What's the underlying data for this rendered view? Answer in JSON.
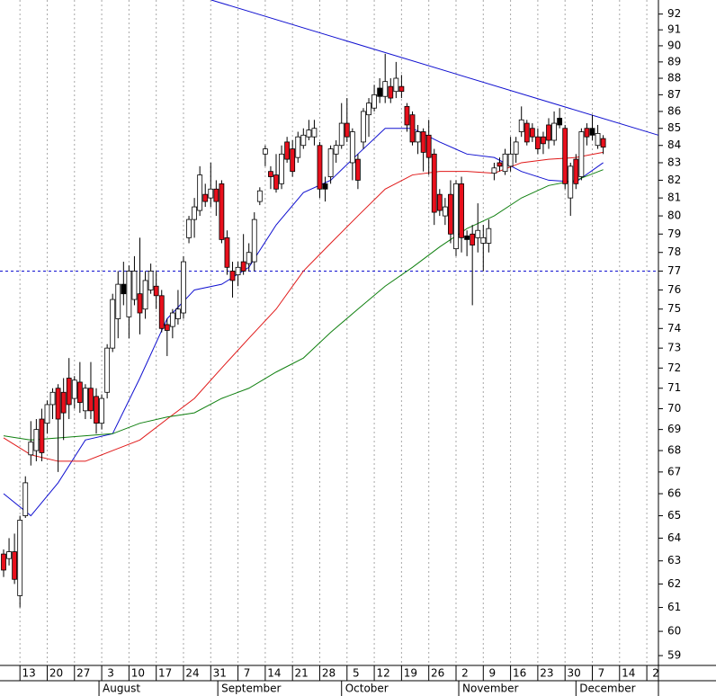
{
  "chart_data": {
    "type": "candlestick",
    "log_scale": true,
    "xlim": [
      -0.66,
      120.13
    ],
    "ylim": [
      58.6,
      92.9
    ],
    "yticks": [
      59,
      60,
      61,
      62,
      63,
      64,
      65,
      66,
      67,
      68,
      69,
      70,
      71,
      72,
      73,
      74,
      75,
      76,
      77,
      78,
      79,
      80,
      81,
      82,
      83,
      84,
      85,
      86,
      87,
      88,
      89,
      90,
      91,
      92
    ],
    "xticks": [
      {
        "value": 3,
        "label": "13"
      },
      {
        "value": 8,
        "label": "20"
      },
      {
        "value": 13,
        "label": "27"
      },
      {
        "value": 18,
        "label": "3"
      },
      {
        "value": 23,
        "label": "10"
      },
      {
        "value": 28,
        "label": "17"
      },
      {
        "value": 33,
        "label": "24"
      },
      {
        "value": 38,
        "label": "31"
      },
      {
        "value": 43,
        "label": "7"
      },
      {
        "value": 48,
        "label": "14"
      },
      {
        "value": 53,
        "label": "21"
      },
      {
        "value": 58,
        "label": "28"
      },
      {
        "value": 63,
        "label": "5"
      },
      {
        "value": 68,
        "label": "12"
      },
      {
        "value": 73,
        "label": "19"
      },
      {
        "value": 78,
        "label": "26"
      },
      {
        "value": 83,
        "label": "2"
      },
      {
        "value": 88,
        "label": "9"
      },
      {
        "value": 93,
        "label": "16"
      },
      {
        "value": 98,
        "label": "23"
      },
      {
        "value": 103,
        "label": "30"
      },
      {
        "value": 108,
        "label": "7"
      },
      {
        "value": 113,
        "label": "14"
      },
      {
        "value": 118,
        "label": "2"
      }
    ],
    "months": [
      {
        "value": 17.5,
        "label": "August"
      },
      {
        "value": 39.3,
        "label": "September"
      },
      {
        "value": 62,
        "label": "October"
      },
      {
        "value": 83.5,
        "label": "November"
      },
      {
        "value": 105,
        "label": "December"
      }
    ],
    "grid": true,
    "open": [
      63.3,
      63.1,
      63.4,
      61.5,
      65,
      67.8,
      68,
      69.5,
      69.3,
      70.2,
      71,
      70.8,
      71.5,
      70.5,
      71.3,
      69.9,
      71,
      70.6,
      69.3,
      70.8,
      73,
      74.5,
      76.3,
      74.6,
      75.5,
      75.8,
      75,
      76,
      76.2,
      75.7,
      74.2,
      74.1,
      74.5,
      74.8,
      78.8,
      79.8,
      80.3,
      81.2,
      81,
      81.5,
      81.8,
      78.8,
      77,
      76.8,
      77.5,
      77.4,
      77.5,
      80.8,
      83.5,
      82.5,
      82.3,
      81.8,
      84.2,
      83.8,
      83.3,
      84,
      84.5,
      84.5,
      84,
      81.8,
      82.2,
      83.5,
      84,
      85.3,
      83,
      83.2,
      84.2,
      85.8,
      86.2,
      87.4,
      86.9,
      87.5,
      87.2,
      87.5,
      86.3,
      85.8,
      84.2,
      84.8,
      84.6,
      83.5,
      81.2,
      80,
      81.2,
      78.2,
      81.8,
      78.9,
      79,
      78.8,
      78.5,
      78.5,
      82.4,
      83,
      82.5,
      82.8,
      83.5,
      84.8,
      85.3,
      85,
      84.5,
      84.5,
      85.2,
      84.3,
      85.6,
      85,
      81,
      83.2,
      82.2,
      85,
      85,
      84,
      84.4
    ],
    "high": [
      63.5,
      64,
      64.2,
      65,
      66.8,
      69.4,
      69.5,
      70,
      70.4,
      71,
      71.2,
      71.5,
      72.5,
      71.6,
      72.3,
      71.2,
      72.3,
      71,
      70.7,
      73.2,
      75.8,
      77,
      77.5,
      77.3,
      77.8,
      78.8,
      77,
      77.4,
      77,
      76,
      74.5,
      75,
      76,
      77.8,
      80,
      81,
      82.8,
      81.8,
      83,
      82,
      82,
      79.2,
      77.5,
      77.5,
      79,
      78.5,
      80.2,
      81.6,
      84,
      82.8,
      83.5,
      84,
      84.5,
      84.3,
      84.8,
      85,
      85.5,
      85.5,
      84.2,
      82.2,
      84,
      84.3,
      86.5,
      86.8,
      85,
      83.5,
      86.2,
      86.8,
      87.6,
      88,
      89.5,
      88,
      89,
      88.2,
      86.5,
      86,
      85.2,
      85,
      85.5,
      83.8,
      81.5,
      81,
      82,
      82,
      82.2,
      79.2,
      79.5,
      80.7,
      79.5,
      79.8,
      83,
      83.3,
      83.8,
      84.5,
      84.5,
      86.3,
      85.5,
      85.3,
      85,
      84.8,
      85.6,
      86,
      86.2,
      85.2,
      83,
      83.5,
      85,
      85.3,
      85.8,
      85.2,
      84.6
    ],
    "low": [
      62.3,
      62.8,
      62,
      61,
      64.9,
      67.3,
      67.5,
      67.5,
      68.8,
      69.5,
      67,
      68.5,
      69.5,
      70,
      69.8,
      69.5,
      69.5,
      68.8,
      69,
      70.5,
      72.8,
      73.5,
      75.2,
      73.5,
      75.2,
      73.7,
      74.5,
      75.8,
      75,
      73.8,
      72.6,
      73.5,
      74.2,
      74.5,
      78.5,
      78.8,
      80,
      80.5,
      80.5,
      80,
      78.5,
      76.8,
      75.6,
      76.2,
      76.8,
      77,
      77,
      80.6,
      82.8,
      81.5,
      81.3,
      81.5,
      83,
      82.2,
      83,
      83.8,
      84.3,
      84,
      81,
      80.8,
      81.8,
      83,
      83.8,
      84.2,
      82,
      81.5,
      83.8,
      84.5,
      86,
      86.5,
      86.5,
      86.5,
      86.8,
      86.8,
      84.8,
      84,
      83.5,
      82.5,
      82.3,
      79.5,
      80,
      79.5,
      78.5,
      77.8,
      78,
      77.8,
      75.2,
      78,
      77,
      78,
      82,
      82.5,
      82.3,
      82.5,
      83,
      84.5,
      84,
      84.2,
      83.5,
      83.5,
      83.8,
      84,
      85,
      81.5,
      80,
      81.5,
      82,
      84,
      84.3,
      83.8,
      83.5
    ],
    "close": [
      62.6,
      63.4,
      62.2,
      64.8,
      66.5,
      68.4,
      69,
      67.9,
      70.2,
      70.8,
      69.5,
      69.8,
      70.2,
      71.4,
      70.3,
      71,
      69.9,
      69.3,
      70.5,
      73,
      75.5,
      76.3,
      75.8,
      77,
      77,
      74.8,
      76.5,
      77,
      75.7,
      74,
      73.9,
      74.8,
      75,
      77.5,
      79.8,
      80.5,
      82.3,
      80.8,
      81.5,
      80.8,
      78.7,
      77.2,
      76.5,
      77.2,
      77,
      78,
      79.8,
      81.4,
      83.8,
      82.2,
      81.5,
      83.5,
      83.2,
      82.5,
      84.5,
      84.6,
      84.9,
      85,
      81.5,
      81.5,
      83.8,
      84,
      85.3,
      84.5,
      84.8,
      82,
      86,
      86.5,
      87,
      86.9,
      87.8,
      86.8,
      88,
      87.2,
      85.2,
      84.2,
      84.8,
      83.6,
      83.3,
      80.2,
      80.3,
      80.5,
      79,
      81.8,
      78.8,
      78.7,
      78.4,
      79.2,
      78.8,
      79.3,
      82.7,
      82.8,
      83.5,
      83.5,
      84.2,
      85.5,
      84.2,
      84.5,
      83.8,
      84.1,
      84.3,
      85.3,
      85.2,
      81.8,
      82.8,
      81.8,
      84.8,
      84.5,
      84.6,
      84.7,
      83.9
    ],
    "colors": [
      "#e8101c",
      "#ffffff",
      "#e8101c",
      "#ffffff",
      "#ffffff",
      "#ffffff",
      "#ffffff",
      "#e8101c",
      "#ffffff",
      "#ffffff",
      "#e8101c",
      "#e8101c",
      "#e8101c",
      "#ffffff",
      "#e8101c",
      "#ffffff",
      "#e8101c",
      "#e8101c",
      "#ffffff",
      "#ffffff",
      "#ffffff",
      "#ffffff",
      "#000000",
      "#ffffff",
      "#ffffff",
      "#e8101c",
      "#ffffff",
      "#ffffff",
      "#e8101c",
      "#e8101c",
      "#e8101c",
      "#ffffff",
      "#ffffff",
      "#ffffff",
      "#ffffff",
      "#ffffff",
      "#ffffff",
      "#e8101c",
      "#ffffff",
      "#e8101c",
      "#e8101c",
      "#e8101c",
      "#e8101c",
      "#ffffff",
      "#e8101c",
      "#ffffff",
      "#ffffff",
      "#ffffff",
      "#ffffff",
      "#e8101c",
      "#e8101c",
      "#ffffff",
      "#e8101c",
      "#e8101c",
      "#ffffff",
      "#ffffff",
      "#ffffff",
      "#ffffff",
      "#e8101c",
      "#000000",
      "#ffffff",
      "#ffffff",
      "#ffffff",
      "#e8101c",
      "#ffffff",
      "#e8101c",
      "#ffffff",
      "#ffffff",
      "#ffffff",
      "#000000",
      "#ffffff",
      "#e8101c",
      "#ffffff",
      "#e8101c",
      "#e8101c",
      "#e8101c",
      "#ffffff",
      "#e8101c",
      "#e8101c",
      "#e8101c",
      "#e8101c",
      "#ffffff",
      "#e8101c",
      "#ffffff",
      "#e8101c",
      "#000000",
      "#e8101c",
      "#ffffff",
      "#ffffff",
      "#ffffff",
      "#ffffff",
      "#e8101c",
      "#ffffff",
      "#ffffff",
      "#ffffff",
      "#ffffff",
      "#e8101c",
      "#e8101c",
      "#e8101c",
      "#e8101c",
      "#e8101c",
      "#ffffff",
      "#000000",
      "#e8101c",
      "#ffffff",
      "#e8101c",
      "#ffffff",
      "#e8101c",
      "#000000",
      "#ffffff",
      "#e8101c"
    ],
    "lines": [
      {
        "color": "#1010d0",
        "x": [
          0,
          5,
          10,
          15,
          20,
          25,
          30,
          35,
          40,
          45,
          50,
          55,
          60,
          65,
          70,
          75,
          80,
          85,
          90,
          95,
          100,
          105,
          110
        ],
        "values": [
          66,
          65,
          66.5,
          68.5,
          68.8,
          71.5,
          74.5,
          76,
          76.3,
          77.2,
          79.5,
          81.3,
          82,
          83.5,
          85,
          85,
          84.2,
          83.5,
          83.3,
          82.5,
          82,
          81.9,
          83
        ]
      },
      {
        "color": "#e01818",
        "x": [
          0,
          5,
          10,
          15,
          20,
          25,
          30,
          35,
          40,
          45,
          50,
          55,
          60,
          65,
          70,
          75,
          80,
          85,
          90,
          95,
          100,
          105,
          110
        ],
        "values": [
          68.6,
          67.8,
          67.5,
          67.5,
          68,
          68.5,
          69.5,
          70.5,
          72,
          73.5,
          75,
          77,
          78.5,
          80,
          81.5,
          82.3,
          82.5,
          82.5,
          82.4,
          83,
          83.2,
          83.3,
          83.6
        ]
      },
      {
        "color": "#108010",
        "x": [
          0,
          5,
          10,
          15,
          20,
          25,
          30,
          35,
          40,
          45,
          50,
          55,
          60,
          65,
          70,
          75,
          80,
          85,
          90,
          95,
          100,
          105,
          110
        ],
        "values": [
          68.7,
          68.5,
          68.6,
          68.7,
          68.8,
          69.3,
          69.6,
          69.8,
          70.5,
          71,
          71.8,
          72.5,
          73.8,
          75,
          76.2,
          77.2,
          78.3,
          79.3,
          80,
          81,
          81.7,
          82,
          82.6
        ]
      }
    ],
    "trendline": {
      "color": "#1010d0",
      "x": [
        38.1,
        120.1
      ],
      "values": [
        92.9,
        84.6
      ]
    },
    "reference_line": {
      "color": "#1010d0",
      "value": 77
    }
  }
}
